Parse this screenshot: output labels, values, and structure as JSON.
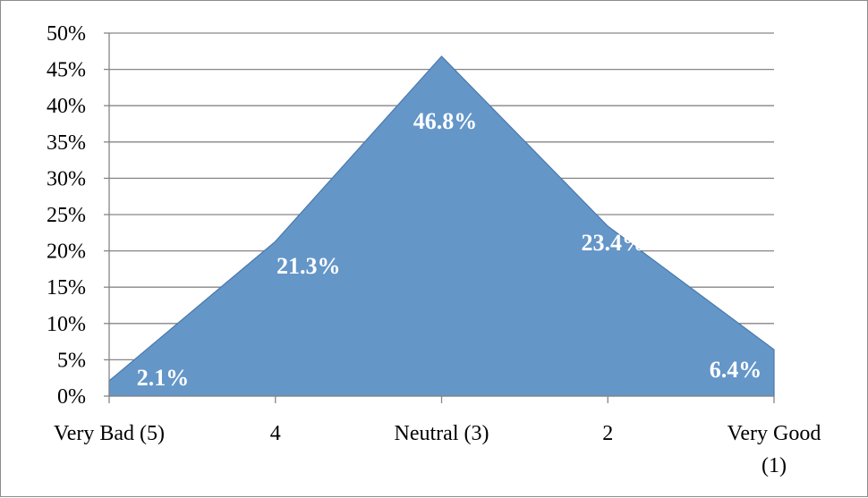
{
  "chart_data": {
    "type": "area",
    "title": "",
    "xlabel": "",
    "ylabel": "",
    "categories": [
      "Very Bad (5)",
      "4",
      "Neutral (3)",
      "2",
      "Very Good (1)"
    ],
    "series": [
      {
        "values": [
          2.1,
          21.3,
          46.8,
          23.4,
          6.4
        ]
      }
    ],
    "data_labels": [
      "2.1%",
      "21.3%",
      "46.8%",
      "23.4%",
      "6.4%"
    ],
    "ylim": [
      0,
      50
    ],
    "yticks": [
      0,
      5,
      10,
      15,
      20,
      25,
      30,
      35,
      40,
      45,
      50
    ],
    "ytick_labels": [
      "0%",
      "5%",
      "10%",
      "15%",
      "20%",
      "25%",
      "30%",
      "35%",
      "40%",
      "45%",
      "50%"
    ],
    "grid": true,
    "legend": "none",
    "colors": {
      "fill": "#6496c8",
      "stroke": "#4a79ad",
      "grid": "#868686",
      "axis": "#868686"
    }
  }
}
